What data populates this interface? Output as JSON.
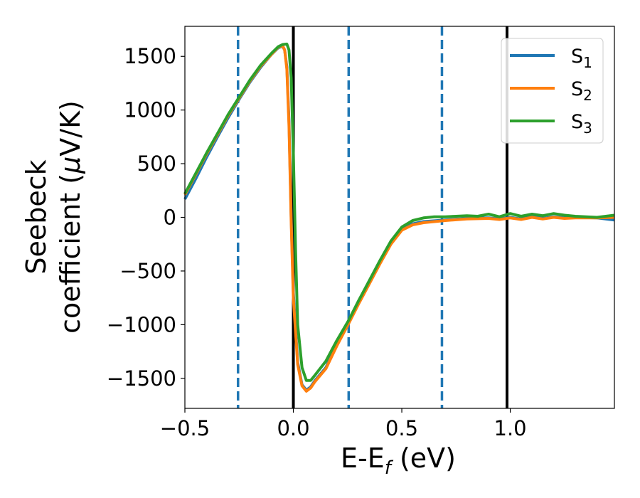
{
  "chart_data": {
    "type": "line",
    "xlabel": {
      "main": "E-E",
      "sub": "f",
      "suffix": " (eV)"
    },
    "ylabel": {
      "line1": "Seebeck",
      "line2": "coefficient  (",
      "mu": "μ",
      "line2_end": "V/K)"
    },
    "xlim": [
      -0.5,
      1.48
    ],
    "ylim": [
      -1780,
      1780
    ],
    "x_ticks": [
      -0.5,
      0.0,
      0.5,
      1.0
    ],
    "x_tick_labels": [
      "−0.5",
      "0.0",
      "0.5",
      "1.0"
    ],
    "y_ticks": [
      1500,
      1000,
      500,
      0,
      -500,
      -1000,
      -1500
    ],
    "y_tick_labels": [
      "1500",
      "1000",
      "500",
      "0",
      "−500",
      "−1000",
      "−1500"
    ],
    "vlines": [
      {
        "x": -0.255,
        "style": "dashed",
        "color": "#1f77b4"
      },
      {
        "x": 0.0,
        "style": "solid",
        "color": "#000000"
      },
      {
        "x": 0.255,
        "style": "dashed",
        "color": "#1f77b4"
      },
      {
        "x": 0.685,
        "style": "dashed",
        "color": "#1f77b4"
      },
      {
        "x": 0.985,
        "style": "solid",
        "color": "#000000"
      }
    ],
    "legend_position": "top-right",
    "series": [
      {
        "name": "S",
        "subscript": "1",
        "color": "#1f77b4",
        "points": [
          [
            -0.5,
            170
          ],
          [
            -0.45,
            360
          ],
          [
            -0.4,
            560
          ],
          [
            -0.35,
            750
          ],
          [
            -0.3,
            930
          ],
          [
            -0.25,
            1100
          ],
          [
            -0.2,
            1260
          ],
          [
            -0.15,
            1400
          ],
          [
            -0.1,
            1520
          ],
          [
            -0.07,
            1580
          ],
          [
            -0.05,
            1595
          ],
          [
            -0.04,
            1560
          ],
          [
            -0.03,
            1400
          ],
          [
            -0.02,
            900
          ],
          [
            -0.01,
            0
          ],
          [
            0.0,
            -700
          ],
          [
            0.02,
            -1350
          ],
          [
            0.04,
            -1560
          ],
          [
            0.06,
            -1610
          ],
          [
            0.08,
            -1580
          ],
          [
            0.1,
            -1520
          ],
          [
            0.15,
            -1400
          ],
          [
            0.2,
            -1180
          ],
          [
            0.255,
            -980
          ],
          [
            0.3,
            -800
          ],
          [
            0.35,
            -610
          ],
          [
            0.4,
            -420
          ],
          [
            0.45,
            -240
          ],
          [
            0.5,
            -110
          ],
          [
            0.55,
            -60
          ],
          [
            0.6,
            -40
          ],
          [
            0.7,
            -25
          ],
          [
            0.8,
            -10
          ],
          [
            0.9,
            -5
          ],
          [
            0.95,
            -15
          ],
          [
            1.0,
            0
          ],
          [
            1.05,
            -15
          ],
          [
            1.1,
            5
          ],
          [
            1.15,
            -10
          ],
          [
            1.2,
            5
          ],
          [
            1.25,
            -5
          ],
          [
            1.3,
            0
          ],
          [
            1.4,
            -5
          ],
          [
            1.48,
            -25
          ]
        ]
      },
      {
        "name": "S",
        "subscript": "2",
        "color": "#ff7f0e",
        "points": [
          [
            -0.5,
            210
          ],
          [
            -0.45,
            400
          ],
          [
            -0.4,
            590
          ],
          [
            -0.35,
            770
          ],
          [
            -0.3,
            950
          ],
          [
            -0.25,
            1110
          ],
          [
            -0.2,
            1270
          ],
          [
            -0.15,
            1410
          ],
          [
            -0.1,
            1520
          ],
          [
            -0.07,
            1585
          ],
          [
            -0.05,
            1600
          ],
          [
            -0.04,
            1560
          ],
          [
            -0.03,
            1380
          ],
          [
            -0.02,
            850
          ],
          [
            -0.01,
            -50
          ],
          [
            0.0,
            -750
          ],
          [
            0.02,
            -1370
          ],
          [
            0.04,
            -1570
          ],
          [
            0.06,
            -1620
          ],
          [
            0.08,
            -1590
          ],
          [
            0.1,
            -1530
          ],
          [
            0.15,
            -1410
          ],
          [
            0.2,
            -1200
          ],
          [
            0.255,
            -990
          ],
          [
            0.3,
            -810
          ],
          [
            0.35,
            -620
          ],
          [
            0.4,
            -430
          ],
          [
            0.45,
            -250
          ],
          [
            0.5,
            -120
          ],
          [
            0.55,
            -70
          ],
          [
            0.6,
            -50
          ],
          [
            0.7,
            -30
          ],
          [
            0.8,
            -15
          ],
          [
            0.9,
            -10
          ],
          [
            0.95,
            -20
          ],
          [
            1.0,
            -5
          ],
          [
            1.05,
            -20
          ],
          [
            1.1,
            0
          ],
          [
            1.15,
            -15
          ],
          [
            1.2,
            0
          ],
          [
            1.25,
            -10
          ],
          [
            1.3,
            -5
          ],
          [
            1.4,
            -5
          ],
          [
            1.48,
            0
          ]
        ]
      },
      {
        "name": "S",
        "subscript": "3",
        "color": "#2ca02c",
        "points": [
          [
            -0.5,
            220
          ],
          [
            -0.45,
            410
          ],
          [
            -0.4,
            600
          ],
          [
            -0.35,
            780
          ],
          [
            -0.3,
            960
          ],
          [
            -0.25,
            1120
          ],
          [
            -0.2,
            1280
          ],
          [
            -0.15,
            1420
          ],
          [
            -0.1,
            1530
          ],
          [
            -0.07,
            1590
          ],
          [
            -0.05,
            1610
          ],
          [
            -0.03,
            1615
          ],
          [
            -0.02,
            1560
          ],
          [
            -0.01,
            1300
          ],
          [
            0.0,
            600
          ],
          [
            0.01,
            -300
          ],
          [
            0.02,
            -1000
          ],
          [
            0.04,
            -1400
          ],
          [
            0.06,
            -1520
          ],
          [
            0.08,
            -1520
          ],
          [
            0.1,
            -1470
          ],
          [
            0.15,
            -1340
          ],
          [
            0.2,
            -1150
          ],
          [
            0.255,
            -960
          ],
          [
            0.3,
            -780
          ],
          [
            0.35,
            -590
          ],
          [
            0.4,
            -400
          ],
          [
            0.45,
            -220
          ],
          [
            0.5,
            -90
          ],
          [
            0.55,
            -30
          ],
          [
            0.6,
            -5
          ],
          [
            0.65,
            5
          ],
          [
            0.7,
            5
          ],
          [
            0.75,
            10
          ],
          [
            0.8,
            15
          ],
          [
            0.85,
            10
          ],
          [
            0.9,
            30
          ],
          [
            0.95,
            5
          ],
          [
            1.0,
            35
          ],
          [
            1.05,
            10
          ],
          [
            1.1,
            30
          ],
          [
            1.15,
            15
          ],
          [
            1.2,
            35
          ],
          [
            1.25,
            20
          ],
          [
            1.3,
            10
          ],
          [
            1.4,
            0
          ],
          [
            1.48,
            20
          ]
        ]
      }
    ]
  }
}
